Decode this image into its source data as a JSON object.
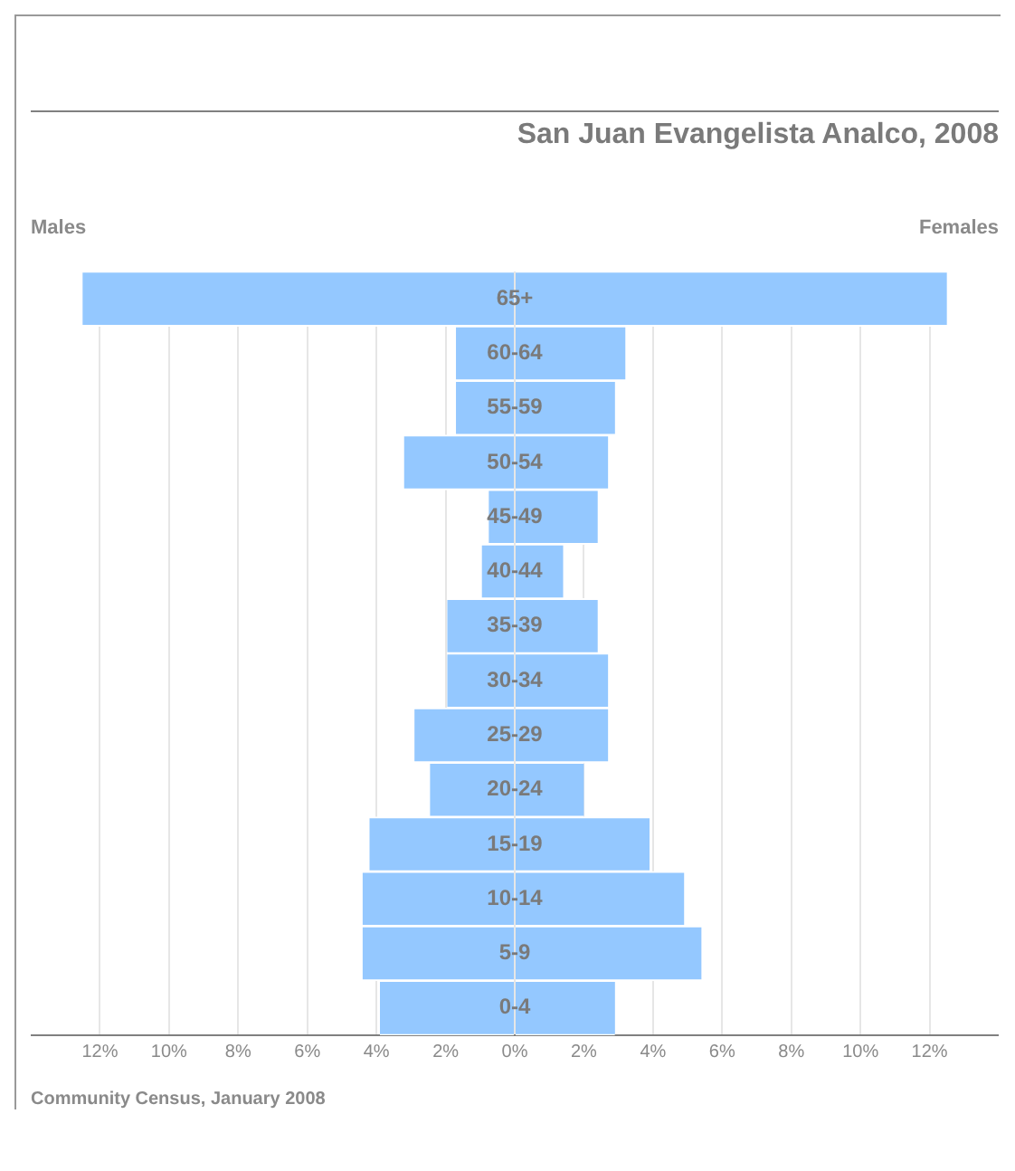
{
  "chart_data": {
    "type": "bar",
    "orientation": "horizontal",
    "stacked": true,
    "title": "San Juan Evangelista Analco, 2008",
    "categories": [
      "65+",
      "60-64",
      "55-59",
      "50-54",
      "45-49",
      "40-44",
      "35-39",
      "30-34",
      "25-29",
      "20-24",
      "15-19",
      "10-14",
      "5-9",
      "0-4"
    ],
    "series": [
      {
        "name": "Males",
        "color": "#94c8ff",
        "values": [
          -12.5,
          -1.7,
          -1.7,
          -3.2,
          -0.75,
          -0.95,
          -1.95,
          -1.95,
          -2.9,
          -2.45,
          -4.2,
          -4.4,
          -4.4,
          -3.9
        ]
      },
      {
        "name": "Females",
        "color": "#94c8ff",
        "values": [
          12.5,
          3.2,
          2.9,
          2.7,
          2.4,
          1.4,
          2.4,
          2.7,
          2.7,
          2.0,
          3.9,
          4.9,
          5.4,
          2.9
        ]
      }
    ],
    "xlim": [
      -14,
      14
    ],
    "xticks": [
      {
        "value": -12,
        "label": "12%"
      },
      {
        "value": -10,
        "label": "10%"
      },
      {
        "value": -8,
        "label": "8%"
      },
      {
        "value": -6,
        "label": "6%"
      },
      {
        "value": -4,
        "label": "4%"
      },
      {
        "value": -2,
        "label": "2%"
      },
      {
        "value": 0,
        "label": "0%"
      },
      {
        "value": 2,
        "label": "2%"
      },
      {
        "value": 4,
        "label": "4%"
      },
      {
        "value": 6,
        "label": "6%"
      },
      {
        "value": 8,
        "label": "8%"
      },
      {
        "value": 10,
        "label": "10%"
      },
      {
        "value": 12,
        "label": "12%"
      }
    ],
    "grid": "x",
    "legend": false,
    "annotations": [
      "Community Census, January 2008"
    ]
  }
}
